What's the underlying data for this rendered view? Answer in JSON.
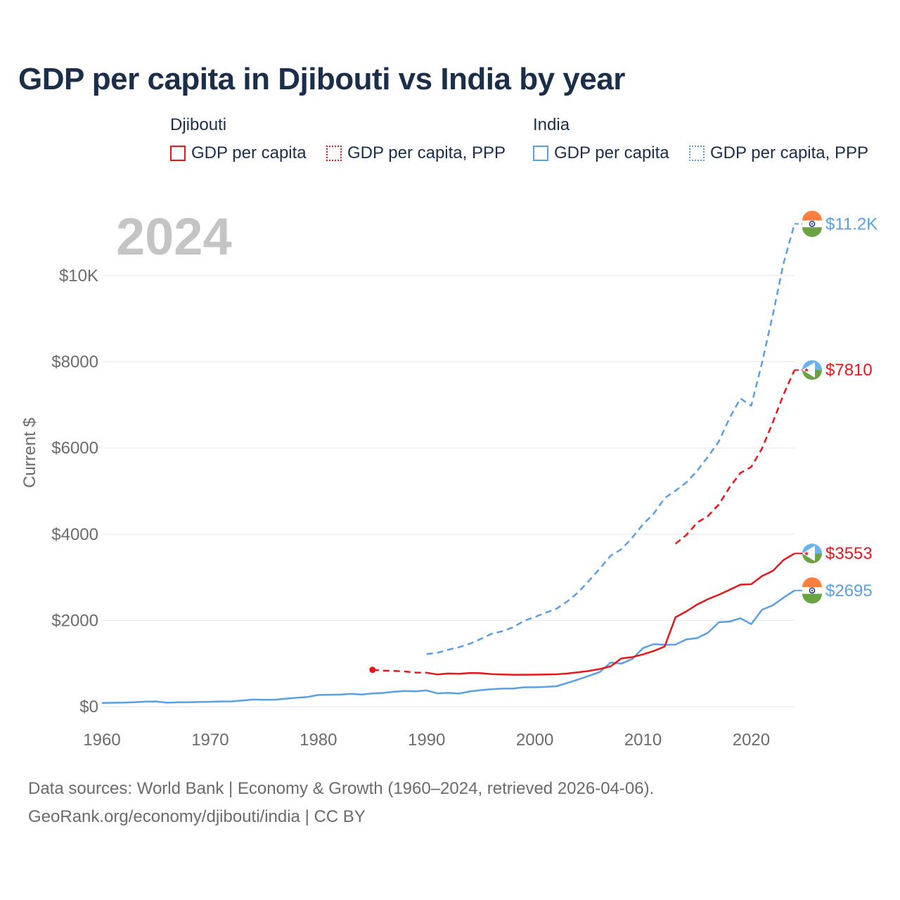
{
  "title": "GDP per capita in Djibouti vs India by year",
  "legend": {
    "groups": [
      {
        "name": "Djibouti",
        "items": [
          "GDP per capita",
          "GDP per capita, PPP"
        ]
      },
      {
        "name": "India",
        "items": [
          "GDP per capita",
          "GDP per capita, PPP"
        ]
      }
    ]
  },
  "footer": {
    "line1": "Data sources: World Bank | Economy & Growth (1960–2024, retrieved 2026-04-06).",
    "line2": "GeoRank.org/economy/djibouti/india | CC BY"
  },
  "colors": {
    "djibouti": "#e8161b",
    "india": "#5b9fe3",
    "title": "#1b2f4b",
    "year_watermark": "#c4c4c4"
  },
  "chart_data": {
    "type": "line",
    "title": "GDP per capita in Djibouti vs India by year",
    "year_label": "2024",
    "ylabel": "Current $",
    "xlabel": "",
    "xlim": [
      1960,
      2024
    ],
    "ylim": [
      0,
      11500
    ],
    "x_ticks": [
      1960,
      1970,
      1980,
      1990,
      2000,
      2010,
      2020
    ],
    "y_ticks": [
      {
        "value": 0,
        "label": "$0"
      },
      {
        "value": 2000,
        "label": "$2000"
      },
      {
        "value": 4000,
        "label": "$4000"
      },
      {
        "value": 6000,
        "label": "$6000"
      },
      {
        "value": 8000,
        "label": "$8000"
      },
      {
        "value": 10000,
        "label": "$10K"
      }
    ],
    "grid": true,
    "series": [
      {
        "name": "India GDP per capita",
        "country": "India",
        "style": "solid",
        "color": "#5b9fe3",
        "end_label": "$2695",
        "points": [
          [
            1960,
            85
          ],
          [
            1961,
            89
          ],
          [
            1962,
            93
          ],
          [
            1963,
            102
          ],
          [
            1964,
            116
          ],
          [
            1965,
            120
          ],
          [
            1966,
            91
          ],
          [
            1967,
            99
          ],
          [
            1968,
            101
          ],
          [
            1969,
            108
          ],
          [
            1970,
            113
          ],
          [
            1971,
            120
          ],
          [
            1972,
            123
          ],
          [
            1973,
            144
          ],
          [
            1974,
            165
          ],
          [
            1975,
            159
          ],
          [
            1976,
            161
          ],
          [
            1977,
            186
          ],
          [
            1978,
            206
          ],
          [
            1979,
            225
          ],
          [
            1980,
            270
          ],
          [
            1981,
            275
          ],
          [
            1982,
            279
          ],
          [
            1983,
            296
          ],
          [
            1984,
            282
          ],
          [
            1985,
            305
          ],
          [
            1986,
            318
          ],
          [
            1987,
            347
          ],
          [
            1988,
            362
          ],
          [
            1989,
            354
          ],
          [
            1990,
            377
          ],
          [
            1991,
            309
          ],
          [
            1992,
            319
          ],
          [
            1993,
            304
          ],
          [
            1994,
            352
          ],
          [
            1995,
            383
          ],
          [
            1996,
            403
          ],
          [
            1997,
            418
          ],
          [
            1998,
            419
          ],
          [
            1999,
            448
          ],
          [
            2000,
            450
          ],
          [
            2001,
            458
          ],
          [
            2002,
            473
          ],
          [
            2003,
            550
          ],
          [
            2004,
            629
          ],
          [
            2005,
            714
          ],
          [
            2006,
            803
          ],
          [
            2007,
            1023
          ],
          [
            2008,
            999
          ],
          [
            2009,
            1102
          ],
          [
            2010,
            1358
          ],
          [
            2011,
            1450
          ],
          [
            2012,
            1434
          ],
          [
            2013,
            1439
          ],
          [
            2014,
            1560
          ],
          [
            2015,
            1591
          ],
          [
            2016,
            1714
          ],
          [
            2017,
            1958
          ],
          [
            2018,
            1974
          ],
          [
            2019,
            2050
          ],
          [
            2020,
            1913
          ],
          [
            2021,
            2250
          ],
          [
            2022,
            2351
          ],
          [
            2023,
            2531
          ],
          [
            2024,
            2695
          ]
        ]
      },
      {
        "name": "India GDP per capita, PPP",
        "country": "India",
        "style": "dashed",
        "color": "#5b9fe3",
        "end_label": "$11.2K",
        "points": [
          [
            1990,
            1220
          ],
          [
            1991,
            1250
          ],
          [
            1992,
            1320
          ],
          [
            1993,
            1380
          ],
          [
            1994,
            1460
          ],
          [
            1995,
            1570
          ],
          [
            1996,
            1690
          ],
          [
            1997,
            1750
          ],
          [
            1998,
            1840
          ],
          [
            1999,
            1990
          ],
          [
            2000,
            2080
          ],
          [
            2001,
            2180
          ],
          [
            2002,
            2270
          ],
          [
            2003,
            2440
          ],
          [
            2004,
            2650
          ],
          [
            2005,
            2920
          ],
          [
            2006,
            3200
          ],
          [
            2007,
            3500
          ],
          [
            2008,
            3650
          ],
          [
            2009,
            3920
          ],
          [
            2010,
            4230
          ],
          [
            2011,
            4480
          ],
          [
            2012,
            4840
          ],
          [
            2013,
            5010
          ],
          [
            2014,
            5200
          ],
          [
            2015,
            5470
          ],
          [
            2016,
            5800
          ],
          [
            2017,
            6150
          ],
          [
            2018,
            6700
          ],
          [
            2019,
            7150
          ],
          [
            2020,
            6980
          ],
          [
            2021,
            7980
          ],
          [
            2022,
            9100
          ],
          [
            2023,
            10300
          ],
          [
            2024,
            11200
          ]
        ]
      },
      {
        "name": "Djibouti GDP per capita",
        "country": "Djibouti",
        "style": "solid",
        "color": "#e8161b",
        "end_label": "$3553",
        "points": [
          [
            1990,
            788
          ],
          [
            1991,
            745
          ],
          [
            1992,
            768
          ],
          [
            1993,
            763
          ],
          [
            1994,
            781
          ],
          [
            1995,
            776
          ],
          [
            1996,
            755
          ],
          [
            1997,
            747
          ],
          [
            1998,
            740
          ],
          [
            1999,
            741
          ],
          [
            2000,
            742
          ],
          [
            2001,
            745
          ],
          [
            2002,
            751
          ],
          [
            2003,
            768
          ],
          [
            2004,
            798
          ],
          [
            2005,
            829
          ],
          [
            2006,
            872
          ],
          [
            2007,
            935
          ],
          [
            2008,
            1119
          ],
          [
            2009,
            1149
          ],
          [
            2010,
            1212
          ],
          [
            2011,
            1292
          ],
          [
            2012,
            1395
          ],
          [
            2013,
            2074
          ],
          [
            2014,
            2210
          ],
          [
            2015,
            2368
          ],
          [
            2016,
            2494
          ],
          [
            2017,
            2595
          ],
          [
            2018,
            2713
          ],
          [
            2019,
            2830
          ],
          [
            2020,
            2840
          ],
          [
            2021,
            3031
          ],
          [
            2022,
            3150
          ],
          [
            2023,
            3405
          ],
          [
            2024,
            3553
          ]
        ]
      },
      {
        "name": "Djibouti GDP per capita, PPP",
        "country": "Djibouti",
        "style": "dashed",
        "color": "#e8161b",
        "end_label": "$7810",
        "points": [
          [
            2013,
            3780
          ],
          [
            2014,
            3980
          ],
          [
            2015,
            4270
          ],
          [
            2016,
            4420
          ],
          [
            2017,
            4690
          ],
          [
            2018,
            5090
          ],
          [
            2019,
            5420
          ],
          [
            2020,
            5560
          ],
          [
            2021,
            5990
          ],
          [
            2022,
            6600
          ],
          [
            2023,
            7250
          ],
          [
            2024,
            7810
          ]
        ]
      },
      {
        "name": "Djibouti GDP per capita (early)",
        "country": "Djibouti",
        "style": "dashed",
        "color": "#e8161b",
        "points": [
          [
            1985,
            855
          ],
          [
            1986,
            835
          ],
          [
            1987,
            830
          ],
          [
            1988,
            815
          ],
          [
            1989,
            790
          ],
          [
            1990,
            788
          ]
        ]
      }
    ]
  }
}
